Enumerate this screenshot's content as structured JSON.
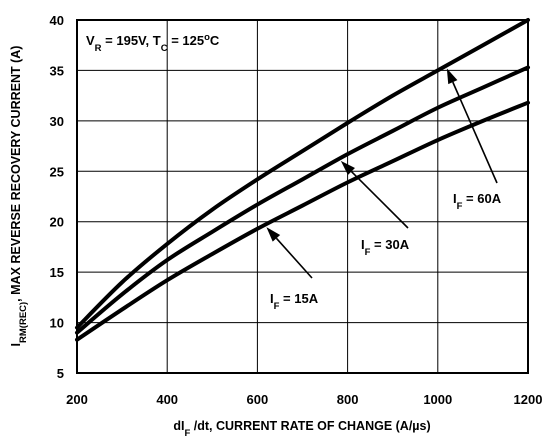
{
  "chart_data": {
    "type": "line",
    "xlabel": {
      "main": "dI",
      "sub": "F",
      "rest": " /dt, CURRENT RATE OF CHANGE (A/µs)"
    },
    "ylabel": {
      "main": "I",
      "sub": "RM(REC)",
      "rest": ", MAX REVERSE RECOVERY CURRENT (A)"
    },
    "xlim": [
      200,
      1200
    ],
    "ylim": [
      5,
      40
    ],
    "x_ticks": [
      "200",
      "400",
      "600",
      "800",
      "1000",
      "1200"
    ],
    "y_ticks": [
      "5",
      "10",
      "15",
      "20",
      "25",
      "30",
      "35",
      "40"
    ],
    "grid": true,
    "condition": {
      "v": "V",
      "v_sub": "R",
      "v_val": " = 195V, T",
      "t_sub": "C",
      "t_val": " = 125",
      "t_sup": "o",
      "t_unit": "C"
    },
    "series": [
      {
        "label": {
          "main": "I",
          "sub": "F",
          "rest": " = 60A"
        },
        "x": [
          200,
          300,
          400,
          500,
          600,
          700,
          800,
          900,
          1000,
          1100,
          1200
        ],
        "y": [
          9.5,
          14.0,
          17.8,
          21.2,
          24.2,
          27.0,
          29.8,
          32.5,
          35.0,
          37.5,
          40.0
        ]
      },
      {
        "label": {
          "main": "I",
          "sub": "F",
          "rest": " = 30A"
        },
        "x": [
          200,
          300,
          400,
          500,
          600,
          700,
          800,
          900,
          1000,
          1100,
          1200
        ],
        "y": [
          9.0,
          12.8,
          16.2,
          19.0,
          21.7,
          24.2,
          26.7,
          29.0,
          31.3,
          33.3,
          35.3
        ]
      },
      {
        "label": {
          "main": "I",
          "sub": "F",
          "rest": " = 15A"
        },
        "x": [
          200,
          300,
          400,
          500,
          600,
          700,
          800,
          900,
          1000,
          1100,
          1200
        ],
        "y": [
          8.3,
          11.3,
          14.2,
          16.8,
          19.3,
          21.6,
          23.9,
          26.0,
          28.1,
          30.0,
          31.8
        ]
      }
    ]
  }
}
